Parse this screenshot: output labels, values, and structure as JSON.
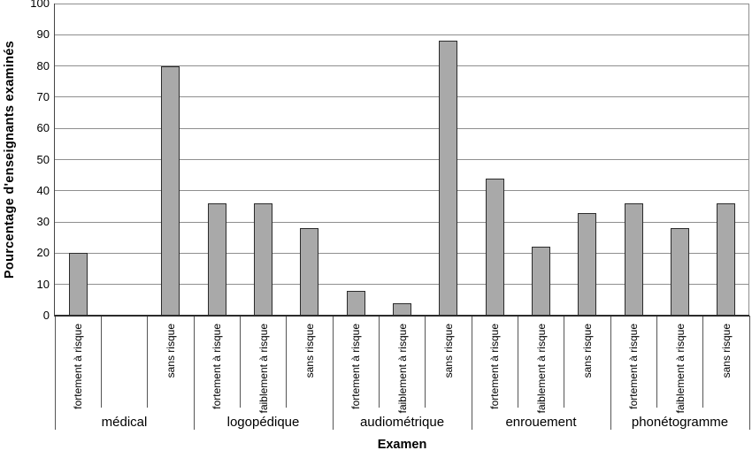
{
  "chart_data": {
    "type": "bar",
    "title": "",
    "xlabel": "Examen",
    "ylabel": "Pourcentage d'enseignants examinés",
    "ylim": [
      0,
      100
    ],
    "ytick_step": 10,
    "yticks": [
      0,
      10,
      20,
      30,
      40,
      50,
      60,
      70,
      80,
      90,
      100
    ],
    "grid": "horizontal",
    "legend": null,
    "groups": [
      {
        "label": "médical",
        "bars": [
          {
            "label": "fortement à risque",
            "value": 20
          },
          {
            "label": "",
            "value": null
          },
          {
            "label": "sans risque",
            "value": 80
          }
        ]
      },
      {
        "label": "logopédique",
        "bars": [
          {
            "label": "fortement à risque",
            "value": 36
          },
          {
            "label": "faiblement à risque",
            "value": 36
          },
          {
            "label": "sans risque",
            "value": 28
          }
        ]
      },
      {
        "label": "audiométrique",
        "bars": [
          {
            "label": "fortement à risque",
            "value": 8
          },
          {
            "label": "faiblement à risque",
            "value": 4
          },
          {
            "label": "sans risque",
            "value": 88
          }
        ]
      },
      {
        "label": "enrouement",
        "bars": [
          {
            "label": "fortement à risque",
            "value": 44
          },
          {
            "label": "faiblement à risque",
            "value": 22
          },
          {
            "label": "sans risque",
            "value": 33
          }
        ]
      },
      {
        "label": "phonétogramme",
        "bars": [
          {
            "label": "fortement à risque",
            "value": 36
          },
          {
            "label": "faiblement à risque",
            "value": 28
          },
          {
            "label": "sans risque",
            "value": 36
          }
        ]
      }
    ],
    "colors": {
      "bar_fill": "#a9a9a9",
      "bar_border": "#2b2b2b",
      "gridline": "#8e8e8e",
      "axis": "#2b2b2b",
      "tick": "#555555",
      "text": "#000000",
      "background": "#ffffff"
    }
  }
}
